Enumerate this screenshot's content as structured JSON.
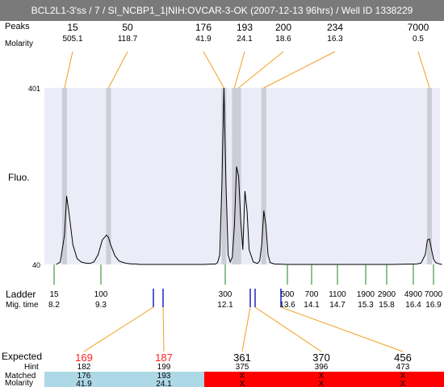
{
  "title": "BCL2L1-3'ss / 7 / SI_NCBP1_1|NIH:OVCAR-3-OK (2007-12-13 96hrs) / Well ID 1338229",
  "labels": {
    "peaks": "Peaks",
    "molarity": "Molarity",
    "fluo": "Fluo.",
    "ladder": "Ladder",
    "mig_time": "Mig. time",
    "expected": "Expected",
    "hint": "Hint",
    "matched": "Matched",
    "molarity_bottom": "Molarity"
  },
  "colors": {
    "plot_bg": "#ececf9",
    "peak_band": "#cdcdd6",
    "connector": "#f0a020",
    "ladder_tick": "#208020",
    "marker": "#2020c0",
    "matched_ok": "#add8e6",
    "matched_bad": "#ff0000",
    "expected_red": "#ff2020"
  },
  "chart_data": {
    "type": "line",
    "title": "",
    "ylabel": "Fluo.",
    "ylim": [
      40,
      401
    ],
    "y_ticks": [
      "401",
      "40"
    ],
    "peaks": [
      {
        "size": "15",
        "molarity": "505.1"
      },
      {
        "size": "50",
        "molarity": "118.7"
      },
      {
        "size": "176",
        "molarity": "41.9"
      },
      {
        "size": "193",
        "molarity": "24.1"
      },
      {
        "size": "200",
        "molarity": "18.6"
      },
      {
        "size": "234",
        "molarity": "16.3"
      },
      {
        "size": "7000",
        "molarity": "0.5"
      }
    ],
    "ladder": [
      {
        "size": "15",
        "time": "8.2"
      },
      {
        "size": "100",
        "time": "9.3"
      },
      {
        "size": "300",
        "time": "12.1"
      },
      {
        "size": "500",
        "time": "13.6"
      },
      {
        "size": "700",
        "time": "14.1"
      },
      {
        "size": "1100",
        "time": "14.7"
      },
      {
        "size": "1900",
        "time": "15.3"
      },
      {
        "size": "2900",
        "time": "15.8"
      },
      {
        "size": "4900",
        "time": "16.4"
      },
      {
        "size": "7000",
        "time": "16.9"
      }
    ],
    "expected": [
      {
        "expected": "169",
        "hint": "182",
        "matched": "176",
        "molarity": "41.9",
        "status": "ok"
      },
      {
        "expected": "187",
        "hint": "199",
        "matched": "193",
        "molarity": "24.1",
        "status": "ok"
      },
      {
        "expected": "361",
        "hint": "375",
        "matched": "X",
        "molarity": "X",
        "status": "bad"
      },
      {
        "expected": "370",
        "hint": "396",
        "matched": "X",
        "molarity": "X",
        "status": "bad"
      },
      {
        "expected": "456",
        "hint": "473",
        "matched": "X",
        "molarity": "X",
        "status": "bad"
      }
    ],
    "trace": {
      "x": [
        8.0,
        8.1,
        8.2,
        8.25,
        8.3,
        8.4,
        8.5,
        8.6,
        8.7,
        8.8,
        8.9,
        9.0,
        9.1,
        9.2,
        9.25,
        9.3,
        9.4,
        9.5,
        9.6,
        9.7,
        9.8,
        9.9,
        10.0,
        10.5,
        11.0,
        11.5,
        11.8,
        11.85,
        11.9,
        11.95,
        12.0,
        12.05,
        12.1,
        12.15,
        12.2,
        12.25,
        12.3,
        12.35,
        12.4,
        12.45,
        12.5,
        12.55,
        12.6,
        12.7,
        12.8,
        12.85,
        12.9,
        12.95,
        13.0,
        13.05,
        13.1,
        13.2,
        13.5,
        14.0,
        15.0,
        16.0,
        16.6,
        16.7,
        16.8,
        16.85,
        16.9,
        16.95,
        17.0,
        17.05,
        17.1,
        17.2
      ],
      "y": [
        40,
        45,
        100,
        180,
        150,
        80,
        52,
        45,
        43,
        42,
        45,
        60,
        90,
        100,
        95,
        80,
        58,
        47,
        44,
        42,
        41,
        41,
        40,
        40,
        40,
        40,
        41,
        44,
        60,
        200,
        401,
        200,
        60,
        45,
        55,
        120,
        240,
        220,
        130,
        70,
        190,
        150,
        70,
        45,
        42,
        47,
        80,
        150,
        120,
        60,
        44,
        41,
        40,
        40,
        40,
        40,
        41,
        43,
        60,
        90,
        92,
        70,
        50,
        44,
        42,
        40
      ]
    }
  }
}
